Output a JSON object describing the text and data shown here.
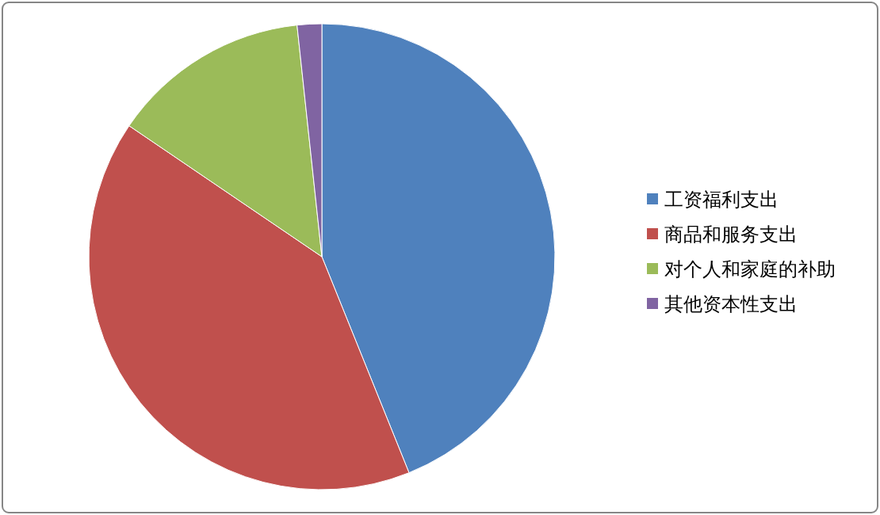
{
  "chart_data": {
    "type": "pie",
    "categories": [
      "工资福利支出",
      "商品和服务支出",
      "对个人和家庭的补助",
      "其他资本性支出"
    ],
    "values": [
      43.9,
      40.6,
      13.8,
      1.7
    ],
    "colors": [
      "#4f81bd",
      "#c0504d",
      "#9bbb59",
      "#8064a2"
    ],
    "legend": "right"
  }
}
